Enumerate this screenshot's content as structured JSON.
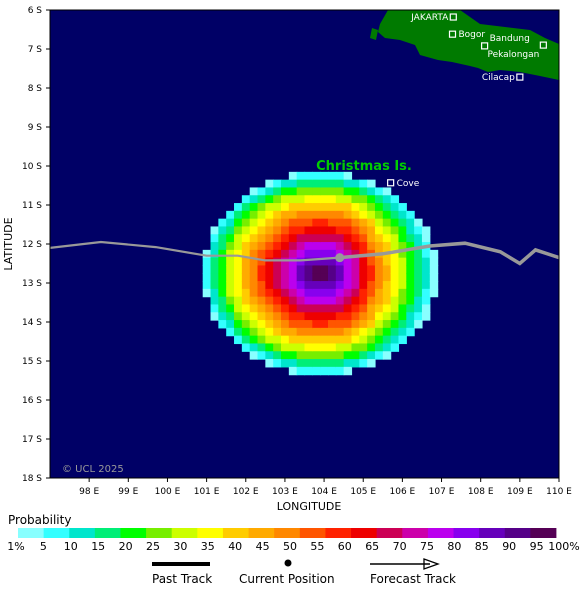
{
  "map": {
    "copyright": "© UCL 2025",
    "x_axis_title": "LONGITUDE",
    "y_axis_title": "LATITUDE",
    "lat_ticks": [
      "6 S",
      "7 S",
      "8 S",
      "9 S",
      "10 S",
      "11 S",
      "12 S",
      "13 S",
      "14 S",
      "15 S",
      "16 S",
      "17 S",
      "18 S"
    ],
    "lon_ticks": [
      "98 E",
      "99 E",
      "100 E",
      "101 E",
      "102 E",
      "103 E",
      "104 E",
      "105 E",
      "106 E",
      "107 E",
      "108 E",
      "109 E",
      "110 E"
    ],
    "lon_range": [
      97,
      110
    ],
    "lat_range": [
      -6,
      -18
    ],
    "places": [
      {
        "name": "JAKARTA",
        "lon": 107.3,
        "lat": -6.18,
        "label_side": "left"
      },
      {
        "name": "Bogor",
        "lon": 107.28,
        "lat": -6.62,
        "label_side": "right"
      },
      {
        "name": "Bandung",
        "lon": 108.1,
        "lat": -6.92,
        "label_side": "up"
      },
      {
        "name": "Pekalongan",
        "lon": 109.6,
        "lat": -6.9,
        "label_side": "below-left"
      },
      {
        "name": "Cilacap",
        "lon": 109.0,
        "lat": -7.72,
        "label_side": "left"
      },
      {
        "name": "Cove",
        "lon": 105.7,
        "lat": -10.43,
        "label_side": "right"
      }
    ],
    "island_label": "Christmas Is.",
    "current_position": {
      "lon": 104.4,
      "lat": -12.35
    },
    "past_track": [
      [
        97,
        -12.1
      ],
      [
        98.3,
        -11.95
      ],
      [
        99.7,
        -12.08
      ],
      [
        101,
        -12.3
      ],
      [
        101.8,
        -12.3
      ],
      [
        102.5,
        -12.42
      ],
      [
        103.4,
        -12.42
      ],
      [
        104.4,
        -12.35
      ]
    ],
    "forecast_track": [
      [
        104.4,
        -12.35
      ],
      [
        105.5,
        -12.25
      ],
      [
        106.7,
        -12.05
      ],
      [
        107.6,
        -11.98
      ],
      [
        108.5,
        -12.2
      ],
      [
        109.0,
        -12.5
      ],
      [
        109.4,
        -12.15
      ],
      [
        110,
        -12.35
      ]
    ],
    "probability_cells": {
      "center_lon": 103.9,
      "center_lat": -12.75,
      "radius_x": 3.0,
      "radius_y": 2.6,
      "grid_step": 0.2
    },
    "colors": {
      "ocean": "#000066",
      "land": "#007a00",
      "island_label": "#00cc00",
      "track": "#999999"
    }
  },
  "legend": {
    "title": "Probability",
    "labels": [
      "1%",
      "5",
      "10",
      "15",
      "20",
      "25",
      "30",
      "35",
      "40",
      "45",
      "50",
      "55",
      "60",
      "65",
      "70",
      "75",
      "80",
      "85",
      "90",
      "95",
      "100%"
    ],
    "colors": [
      "#88ffff",
      "#33ffff",
      "#00e6cc",
      "#00ee77",
      "#00ff00",
      "#77ee00",
      "#ccff00",
      "#ffff00",
      "#ffcc00",
      "#ffaa00",
      "#ff8800",
      "#ff5500",
      "#ff2200",
      "#ee0000",
      "#cc0055",
      "#cc00aa",
      "#bb00ee",
      "#8800ee",
      "#6600bb",
      "#550088",
      "#550055"
    ],
    "past_track_label": "Past Track",
    "current_position_label": "Current Position",
    "forecast_track_label": "Forecast Track"
  }
}
